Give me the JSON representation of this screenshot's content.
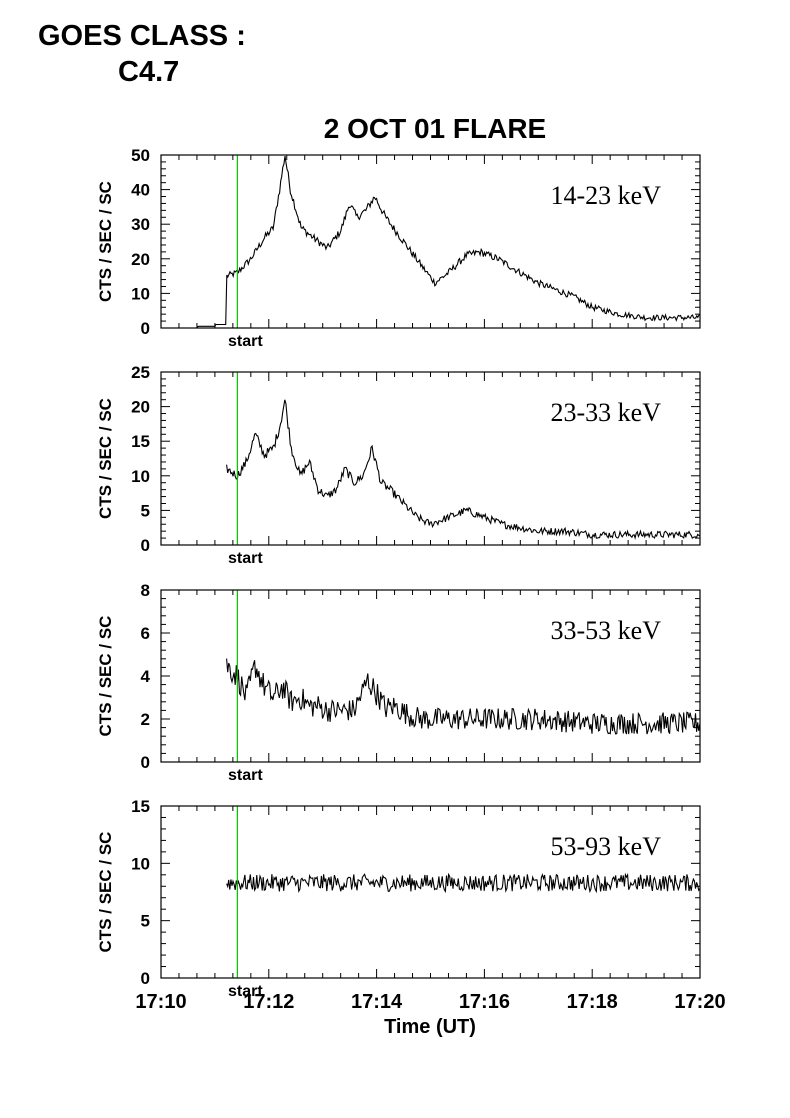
{
  "header": {
    "goes_label": "GOES CLASS :",
    "goes_value": "C4.7"
  },
  "colors": {
    "trace": "#000000",
    "start_line": "#00c000",
    "axes": "#000000"
  },
  "chart_data": {
    "type": "line",
    "title": "2 OCT 01 FLARE",
    "xlabel": "Time (UT)",
    "xlim": [
      "17:10",
      "17:20"
    ],
    "x_ticks": [
      "17:10",
      "17:12",
      "17:14",
      "17:16",
      "17:18",
      "17:20"
    ],
    "start_marker": {
      "time": "17:11:25",
      "label": "start"
    },
    "panels": [
      {
        "band": "14-23 keV",
        "ylabel": "CTS / SEC / SC",
        "ylim": [
          0,
          50
        ],
        "y_ticks": [
          "0",
          "10",
          "20",
          "30",
          "40",
          "50"
        ],
        "noise": 0.8,
        "x": [
          "17:10:00",
          "17:10:40",
          "17:10:41",
          "17:11:00",
          "17:11:01",
          "17:11:12",
          "17:11:13",
          "17:11:25",
          "17:11:40",
          "17:11:55",
          "17:12:05",
          "17:12:12",
          "17:12:18",
          "17:12:24",
          "17:12:36",
          "17:12:50",
          "17:13:05",
          "17:13:20",
          "17:13:30",
          "17:13:38",
          "17:13:48",
          "17:13:58",
          "17:14:10",
          "17:14:30",
          "17:14:50",
          "17:15:05",
          "17:15:20",
          "17:15:40",
          "17:15:55",
          "17:16:15",
          "17:16:40",
          "17:17:00",
          "17:17:20",
          "17:17:40",
          "17:18:00",
          "17:18:30",
          "17:19:00",
          "17:19:30",
          "17:20:00"
        ],
        "y": [
          0,
          0,
          0.5,
          0.5,
          1,
          1,
          15,
          16,
          20,
          26,
          29,
          40,
          50,
          40,
          29,
          26,
          23,
          28,
          36,
          32,
          34,
          38,
          32,
          25,
          18,
          13,
          16,
          21,
          22,
          20,
          16,
          13,
          11,
          9,
          6,
          4,
          3,
          3,
          3
        ]
      },
      {
        "band": "23-33 keV",
        "ylabel": "CTS / SEC / SC",
        "ylim": [
          0,
          25
        ],
        "y_ticks": [
          "0",
          "5",
          "10",
          "15",
          "20",
          "25"
        ],
        "noise": 0.5,
        "x": [
          "17:11:13",
          "17:11:25",
          "17:11:35",
          "17:11:45",
          "17:11:55",
          "17:12:05",
          "17:12:12",
          "17:12:18",
          "17:12:25",
          "17:12:35",
          "17:12:45",
          "17:12:55",
          "17:13:05",
          "17:13:15",
          "17:13:25",
          "17:13:35",
          "17:13:45",
          "17:13:55",
          "17:14:05",
          "17:14:15",
          "17:14:30",
          "17:14:45",
          "17:15:00",
          "17:15:20",
          "17:15:40",
          "17:16:00",
          "17:16:20",
          "17:16:40",
          "17:17:00",
          "17:17:30",
          "17:18:00",
          "17:18:30",
          "17:19:00",
          "17:19:30",
          "17:20:00"
        ],
        "y": [
          11,
          10,
          12,
          16,
          13,
          14,
          17,
          21,
          14,
          10,
          12,
          8,
          7,
          8,
          11,
          9,
          10,
          14,
          9,
          8,
          6,
          4,
          3,
          4,
          5,
          4,
          3,
          2.5,
          2,
          2,
          1.5,
          1.5,
          1.5,
          1.5,
          1.5
        ]
      },
      {
        "band": "33-53 keV",
        "ylabel": "CTS / SEC / SC",
        "ylim": [
          0,
          8
        ],
        "y_ticks": [
          "0",
          "2",
          "4",
          "6",
          "8"
        ],
        "noise": 0.45,
        "x": [
          "17:11:13",
          "17:11:25",
          "17:11:35",
          "17:11:45",
          "17:11:55",
          "17:12:05",
          "17:12:15",
          "17:12:25",
          "17:12:35",
          "17:12:45",
          "17:12:55",
          "17:13:05",
          "17:13:20",
          "17:13:35",
          "17:13:50",
          "17:14:00",
          "17:14:10",
          "17:14:20",
          "17:14:35",
          "17:14:50",
          "17:15:05",
          "17:16:00",
          "17:17:00",
          "17:18:00",
          "17:19:00",
          "17:20:00"
        ],
        "y": [
          4.5,
          4,
          3,
          4.5,
          3.5,
          3,
          3.5,
          2.8,
          3,
          2.6,
          2.6,
          2.4,
          2.4,
          2.4,
          3.8,
          3.2,
          2.5,
          2.6,
          2.2,
          2,
          2,
          2,
          2,
          1.8,
          1.8,
          1.8
        ]
      },
      {
        "band": "53-93 keV",
        "ylabel": "CTS / SEC / SC",
        "ylim": [
          0,
          15
        ],
        "y_ticks": [
          "0",
          "5",
          "10",
          "15"
        ],
        "noise": 0.55,
        "x": [
          "17:11:13",
          "17:20:00"
        ],
        "y": [
          8.3,
          8.3
        ]
      }
    ]
  }
}
